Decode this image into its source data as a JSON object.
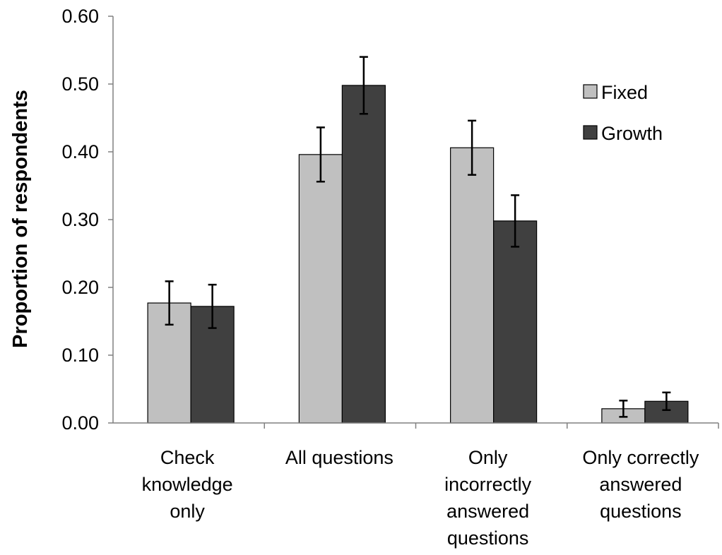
{
  "chart_data": {
    "type": "bar",
    "title": "",
    "xlabel": "",
    "ylabel": "Proportion of respondents",
    "ylim": [
      0,
      0.6
    ],
    "yticks": [
      "0.00",
      "0.10",
      "0.20",
      "0.30",
      "0.40",
      "0.50",
      "0.60"
    ],
    "categories": [
      [
        "Check",
        "knowledge",
        "only"
      ],
      [
        "All questions"
      ],
      [
        "Only",
        "incorrectly",
        "answered",
        "questions"
      ],
      [
        "Only correctly",
        "answered",
        "questions"
      ]
    ],
    "series": [
      {
        "name": "Fixed",
        "color": "#c0c0c0",
        "values": [
          0.177,
          0.396,
          0.406,
          0.021
        ],
        "error": [
          0.032,
          0.04,
          0.04,
          0.012
        ]
      },
      {
        "name": "Growth",
        "color": "#404040",
        "values": [
          0.172,
          0.498,
          0.298,
          0.032
        ],
        "error": [
          0.032,
          0.042,
          0.038,
          0.013
        ]
      }
    ],
    "legend_position": "top-right",
    "grid": false
  }
}
